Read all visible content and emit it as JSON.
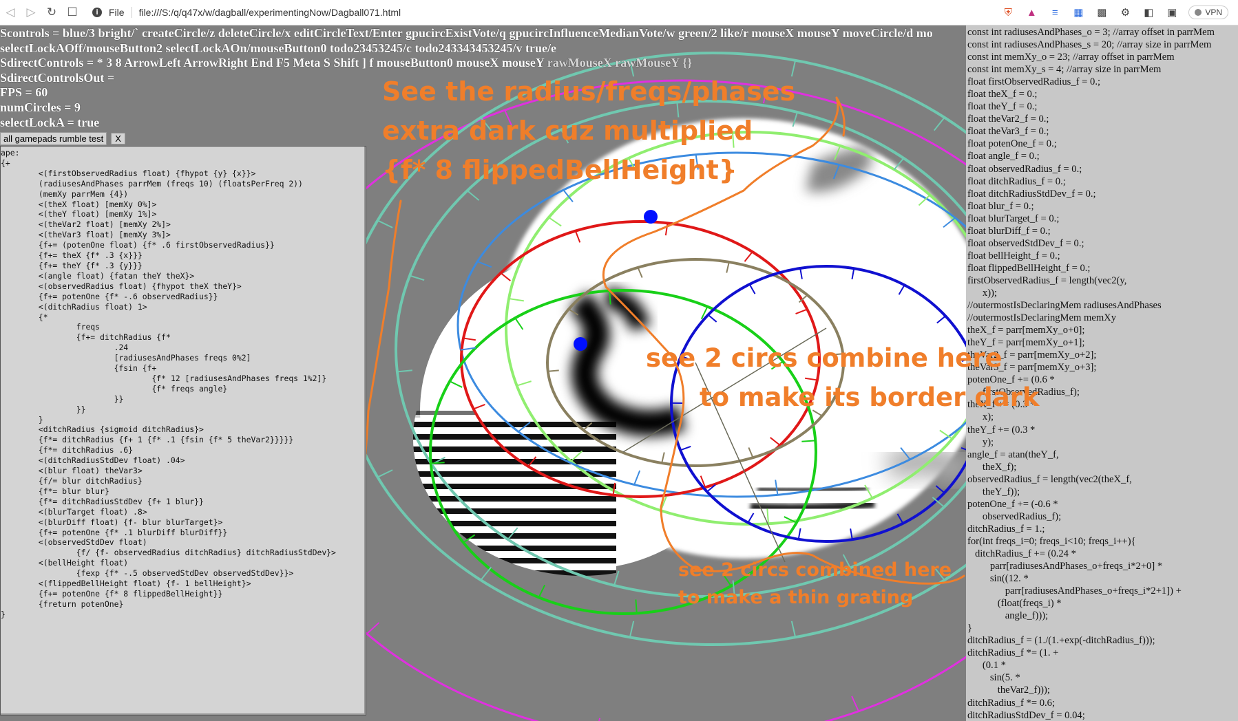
{
  "browser": {
    "scheme": "File",
    "url": "file:///S:/q/q47x/w/dagball/experimentingNow/Dagball071.html",
    "vpn_label": "VPN",
    "icons": [
      "back-icon",
      "forward-icon",
      "reload-icon",
      "bookmark-icon",
      "info-icon",
      "brave-shield-icon",
      "brave-rewards-icon",
      "wallet-icon",
      "translate-icon",
      "extension-icon",
      "puzzle-icon",
      "sidebar-icon",
      "wallet-panel-icon"
    ]
  },
  "status": {
    "line1": "Scontrols = blue/3 bright/` createCircle/z deleteCircle/x editCircleText/Enter gpucircExistVote/q gpucircInfluenceMedianVote/w green/2 like/r mouseX",
    "line1_tail": "mouseY moveCircle/d mo",
    "line2": "selectLockAOff/mouseButton2 selectLockAOn/mouseButton0 todo23453245/c todo243343453245/v true/e",
    "line3": "SdirectControls = * 3 8 ArrowLeft ArrowRight End F5 Meta S Shift ] f mouseButton0 mouseX",
    "line3_tail": "mouseY",
    "line3_dim": "rawMouseX rawMouseY {}",
    "line4": "SdirectControlsOut =",
    "line5": "FPS = 60",
    "line6": "numCircles = 9",
    "line7": "selectLockA = true"
  },
  "tab": {
    "label": "all gamepads rumble test",
    "close": "X"
  },
  "code_panel": {
    "lines": [
      "ape:",
      "{+",
      "        <(firstObservedRadius float) {fhypot {y} {x}}>",
      "        (radiusesAndPhases parrMem (freqs 10) (floatsPerFreq 2))",
      "        (memXy parrMem {4})",
      "        <(theX float) [memXy 0%]>",
      "        <(theY float) [memXy 1%]>",
      "        <(theVar2 float) [memXy 2%]>",
      "        <(theVar3 float) [memXy 3%]>",
      "        {f+= (potenOne float) {f* .6 firstObservedRadius}}",
      "        {f+= theX {f* .3 {x}}}",
      "        {f+= theY {f* .3 {y}}}",
      "        <(angle float) {fatan theY theX}>",
      "        <(observedRadius float) {fhypot theX theY}>",
      "        {f+= potenOne {f* -.6 observedRadius}}",
      "        <(ditchRadius float) 1>",
      "        {*",
      "                freqs",
      "                {f+= ditchRadius {f*",
      "                        .24",
      "                        [radiusesAndPhases freqs 0%2]",
      "                        {fsin {f+",
      "                                {f* 12 [radiusesAndPhases freqs 1%2]}",
      "                                {f* freqs angle}",
      "                        }}",
      "                }}",
      "        }",
      "        <ditchRadius {sigmoid ditchRadius}>",
      "        {f*= ditchRadius {f+ 1 {f* .1 {fsin {f* 5 theVar2}}}}}",
      "        {f*= ditchRadius .6}",
      "        <(ditchRadiusStdDev float) .04>",
      "        <(blur float) theVar3>",
      "        {f/= blur ditchRadius}",
      "        {f*= blur blur}",
      "        {f*= ditchRadiusStdDev {f+ 1 blur}}",
      "        <(blurTarget float) .8>",
      "        <(blurDiff float) {f- blur blurTarget}>",
      "        {f+= potenOne {f* .1 blurDiff blurDiff}}",
      "        <(observedStdDev float)",
      "                {f/ {f- observedRadius ditchRadius} ditchRadiusStdDev}>",
      "        <(bellHeight float)",
      "                {fexp {f* -.5 observedStdDev observedStdDev}}>",
      "        <(flippedBellHeight float) {f- 1 bellHeight}>",
      "        {f+= potenOne {f* 8 flippedBellHeight}}",
      "        {freturn potenOne}",
      "}"
    ]
  },
  "glsl_panel": {
    "lines": [
      "const int radiusesAndPhases_o = 3; //array offset in parrMem",
      "const int radiusesAndPhases_s = 20; //array size in parrMem",
      "const int memXy_o = 23; //array offset in parrMem",
      "const int memXy_s = 4; //array size in parrMem",
      "float firstObservedRadius_f = 0.;",
      "float theX_f = 0.;",
      "float theY_f = 0.;",
      "float theVar2_f = 0.;",
      "float theVar3_f = 0.;",
      "float potenOne_f = 0.;",
      "float angle_f = 0.;",
      "float observedRadius_f = 0.;",
      "float ditchRadius_f = 0.;",
      "float ditchRadiusStdDev_f = 0.;",
      "float blur_f = 0.;",
      "float blurTarget_f = 0.;",
      "float blurDiff_f = 0.;",
      "float observedStdDev_f = 0.;",
      "float bellHeight_f = 0.;",
      "float flippedBellHeight_f = 0.;",
      "firstObservedRadius_f = length(vec2(y,",
      "      x));",
      "//outermostIsDeclaringMem radiusesAndPhases",
      "//outermostIsDeclaringMem memXy",
      "theX_f = parr[memXy_o+0];",
      "theY_f = parr[memXy_o+1];",
      "theVar2_f = parr[memXy_o+2];",
      "theVar3_f = parr[memXy_o+3];",
      "potenOne_f += (0.6 *",
      "      firstObservedRadius_f);",
      "theX_f += (0.3 *",
      "      x);",
      "theY_f += (0.3 *",
      "      y);",
      "angle_f = atan(theY_f,",
      "      theX_f);",
      "observedRadius_f = length(vec2(theX_f,",
      "      theY_f));",
      "potenOne_f += (-0.6 *",
      "      observedRadius_f);",
      "ditchRadius_f = 1.;",
      "for(int freqs_i=0; freqs_i<10; freqs_i++){",
      "   ditchRadius_f += (0.24 *",
      "         parr[radiusesAndPhases_o+freqs_i*2+0] *",
      "         sin((12. *",
      "               parr[radiusesAndPhases_o+freqs_i*2+1]) +",
      "            (float(freqs_i) *",
      "               angle_f)));",
      "}",
      "ditchRadius_f = (1./(1.+exp(-ditchRadius_f)));",
      "ditchRadius_f *= (1. +",
      "      (0.1 *",
      "         sin(5. *",
      "            theVar2_f)));",
      "ditchRadius_f *= 0.6;",
      "ditchRadiusStdDev_f = 0.04;"
    ]
  },
  "annotations": {
    "top_line1": "See the radius/freqs/phases",
    "top_line2": "extra dark cuz multiplied",
    "top_line3": "{f* 8 flippedBellHeight}",
    "mid_line1": "see 2 circs combine here",
    "mid_line2": "to make its border dark",
    "low_line1": "see 2 circs combined here",
    "low_line2": "to make a thin grating"
  },
  "colors": {
    "background": "#7f7f7f",
    "annotation": "#f07e2a",
    "magenta_circle": "#e030e0",
    "teal_circle": "#70c8b0",
    "lightgreen_circle": "#90ee70",
    "blue_circle": "#3c8be0",
    "red_circle": "#e01818",
    "green_circle": "#18d018",
    "darkblue_circle": "#1010d0",
    "olive_circle": "#8a8060",
    "selected_dot": "#0010ff"
  }
}
